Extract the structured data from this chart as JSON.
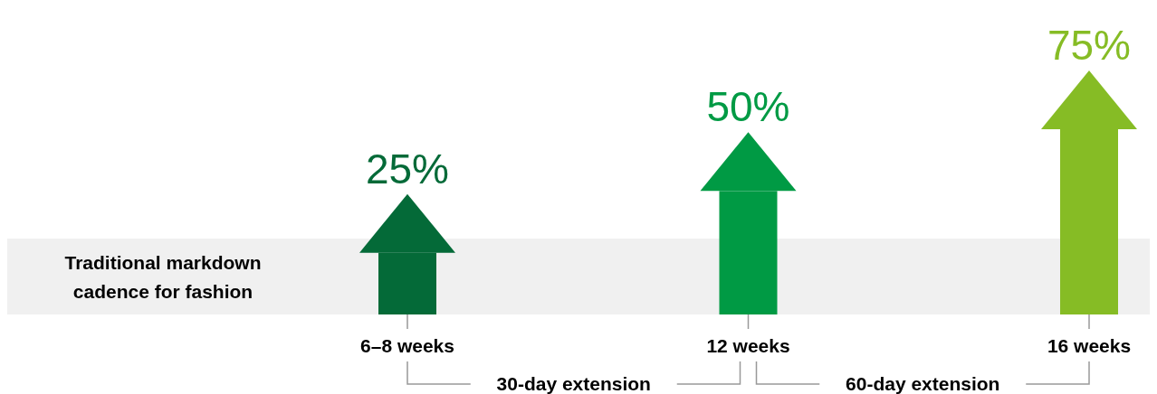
{
  "chart_data": {
    "type": "bar",
    "categories": [
      "6–8 weeks",
      "12 weeks",
      "16 weeks"
    ],
    "values": [
      25,
      50,
      75
    ],
    "colors": [
      "#046a38",
      "#009a44",
      "#86bc25"
    ],
    "value_labels": [
      "25%",
      "50%",
      "75%"
    ],
    "annotations": [
      "Traditional markdown cadence for fashion",
      "30-day extension",
      "60-day extension"
    ]
  }
}
